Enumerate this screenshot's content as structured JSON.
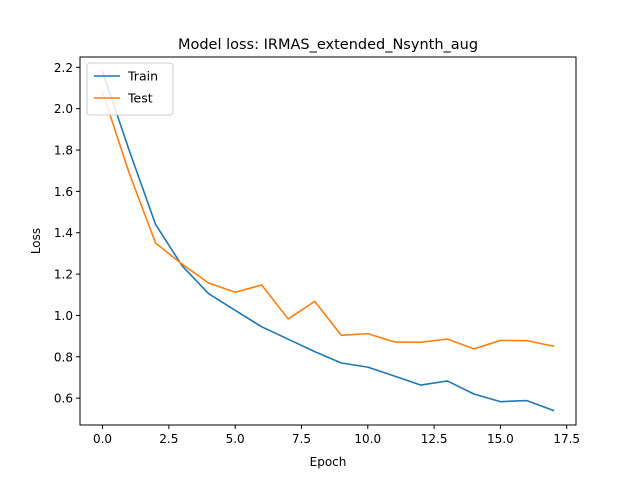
{
  "chart_data": {
    "type": "line",
    "title": "Model loss: IRMAS_extended_Nsynth_aug",
    "xlabel": "Epoch",
    "ylabel": "Loss",
    "xlim": [
      -0.85,
      17.85
    ],
    "ylim": [
      0.47,
      2.25
    ],
    "xticks": [
      0,
      2.5,
      5,
      7.5,
      10,
      12.5,
      15,
      17.5
    ],
    "xtick_labels": [
      "0.0",
      "2.5",
      "5.0",
      "7.5",
      "10.0",
      "12.5",
      "15.0",
      "17.5"
    ],
    "yticks": [
      0.6,
      0.8,
      1.0,
      1.2,
      1.4,
      1.6,
      1.8,
      2.0,
      2.2
    ],
    "ytick_labels": [
      "0.6",
      "0.8",
      "1.0",
      "1.2",
      "1.4",
      "1.6",
      "1.8",
      "2.0",
      "2.2"
    ],
    "grid": false,
    "legend_position": "top-left",
    "x": [
      0,
      1,
      2,
      3,
      4,
      5,
      6,
      7,
      8,
      9,
      10,
      11,
      12,
      13,
      14,
      15,
      16,
      17
    ],
    "series": [
      {
        "name": "Train",
        "color": "#1f77b4",
        "values": [
          2.18,
          1.8,
          1.44,
          1.24,
          1.105,
          1.025,
          0.945,
          0.885,
          0.825,
          0.77,
          0.75,
          0.707,
          0.663,
          0.683,
          0.62,
          0.583,
          0.588,
          0.54
        ]
      },
      {
        "name": "Test",
        "color": "#ff7f0e",
        "values": [
          2.08,
          1.69,
          1.35,
          1.248,
          1.157,
          1.112,
          1.147,
          0.983,
          1.068,
          0.904,
          0.912,
          0.872,
          0.87,
          0.886,
          0.838,
          0.879,
          0.878,
          0.851
        ]
      }
    ]
  }
}
